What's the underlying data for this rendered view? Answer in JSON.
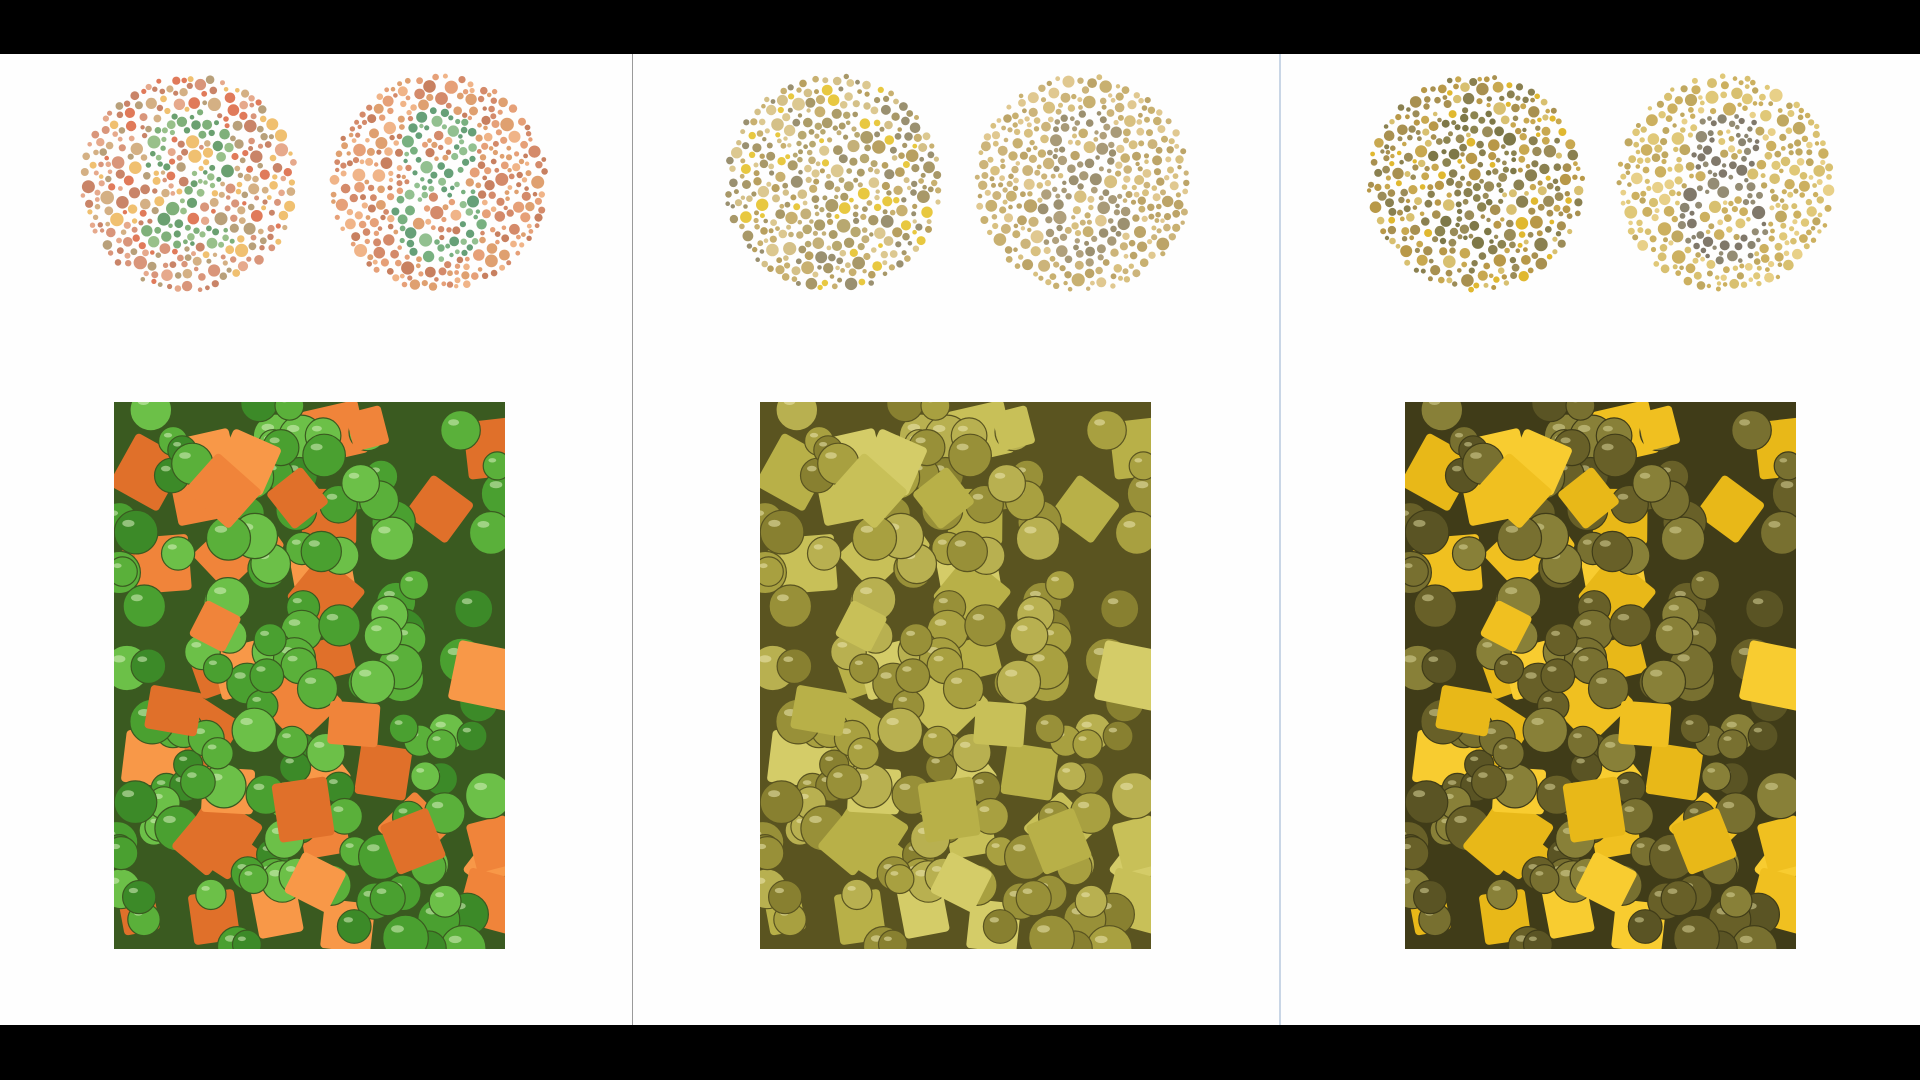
{
  "panels": [
    {
      "id": "normal",
      "plate_a": {
        "bg": [
          "#d9957a",
          "#e6a98c",
          "#c98468",
          "#f0c070",
          "#e07a5a",
          "#b8a07a",
          "#d4b084"
        ],
        "figure": [
          "#7fb07a",
          "#98c08a",
          "#6aa070"
        ],
        "figure_shape": "2"
      },
      "plate_b": {
        "bg": [
          "#e6a078",
          "#d48a6a",
          "#f0b488",
          "#dfa070",
          "#c88060"
        ],
        "figure": [
          "#78b080",
          "#92c090",
          "#66a078"
        ],
        "figure_shape": "8"
      },
      "food": {
        "bg": "#3a5a20",
        "pea": [
          "#5ab03a",
          "#4aa030",
          "#6cc048",
          "#3c8a28"
        ],
        "carrot": [
          "#f0843a",
          "#e0702a",
          "#f89848"
        ],
        "highlight": "#d8f0c0"
      }
    },
    {
      "id": "deuteranopia",
      "plate_a": {
        "bg": [
          "#c8b070",
          "#b8a060",
          "#d4c088",
          "#e8c840",
          "#a89868",
          "#9a9070",
          "#dcc890"
        ],
        "figure": [
          "#b8a870",
          "#c4b078",
          "#ac9c68"
        ],
        "figure_shape": "2"
      },
      "plate_b": {
        "bg": [
          "#d8c080",
          "#c8b070",
          "#e0c890",
          "#bca468",
          "#ccb47a"
        ],
        "figure": [
          "#a89a78",
          "#9c9070",
          "#b0a07c"
        ],
        "figure_shape": "8"
      },
      "food": {
        "bg": "#5a5420",
        "pea": [
          "#a8a040",
          "#989038",
          "#b8b050",
          "#888030"
        ],
        "carrot": [
          "#c8c058",
          "#b8b048",
          "#d4cc68"
        ],
        "highlight": "#ece8b0"
      }
    },
    {
      "id": "protanopia",
      "plate_a": {
        "bg": [
          "#c8a850",
          "#b89848",
          "#e0b830",
          "#a89050",
          "#8a8050",
          "#d8c070",
          "#9c8c58"
        ],
        "figure": [
          "#8c8450",
          "#9a8c58",
          "#7e7848"
        ],
        "figure_shape": "2"
      },
      "plate_b": {
        "bg": [
          "#d8c070",
          "#e0c878",
          "#ccb060",
          "#c0a860",
          "#e8d088"
        ],
        "figure": [
          "#8a8470",
          "#948c74",
          "#80786a"
        ],
        "figure_shape": "8"
      },
      "food": {
        "bg": "#403c18",
        "pea": [
          "#787030",
          "#686028",
          "#888038",
          "#5a5424"
        ],
        "carrot": [
          "#f0c020",
          "#e8b818",
          "#f8cc30"
        ],
        "highlight": "#d8d498"
      }
    }
  ]
}
